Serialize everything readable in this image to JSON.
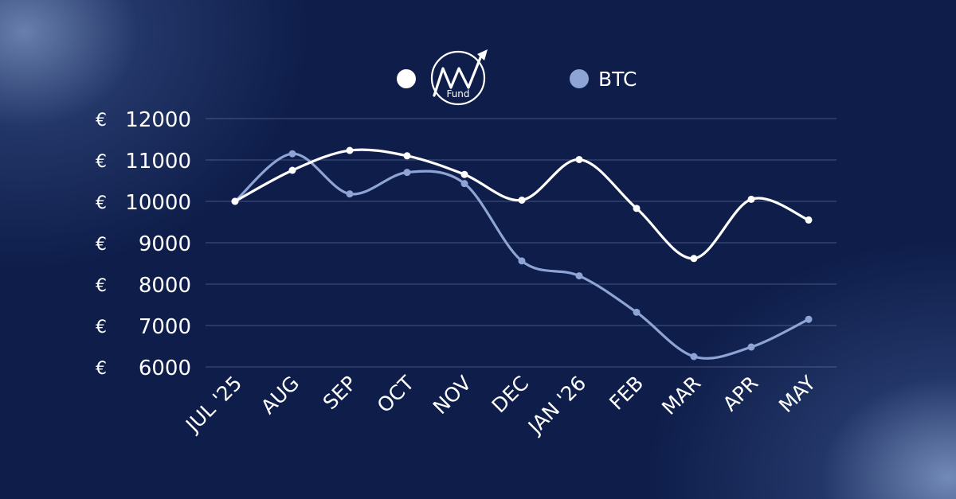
{
  "colors": {
    "background": "#0e1d4a",
    "fund_line": "#ffffff",
    "btc_line": "#8ea4d4"
  },
  "legend": {
    "fund_logo_icon": "mw-fund-logo-icon",
    "fund_logo_sub": "Fund",
    "btc_label": "BTC"
  },
  "chart_data": {
    "type": "line",
    "categories": [
      "JUL '25",
      "AUG",
      "SEP",
      "OCT",
      "NOV",
      "DEC",
      "JAN '26",
      "FEB",
      "MAR",
      "APR",
      "MAY"
    ],
    "series": [
      {
        "name": "MW Fund",
        "values": [
          10000,
          10750,
          11230,
          11100,
          10650,
          10030,
          11010,
          9830,
          8620,
          10050,
          9550
        ]
      },
      {
        "name": "BTC",
        "values": [
          10000,
          11150,
          10180,
          10700,
          10430,
          8560,
          8200,
          7320,
          6250,
          6480,
          7150
        ]
      }
    ],
    "y_ticks": [
      "12000",
      "11000",
      "10000",
      "9000",
      "8000",
      "7000",
      "6000"
    ],
    "y_tick_values": [
      12000,
      11000,
      10000,
      9000,
      8000,
      7000,
      6000
    ],
    "currency_symbol": "€",
    "ylim": [
      6000,
      12000
    ],
    "grid": true,
    "legend_position": "top-center"
  }
}
